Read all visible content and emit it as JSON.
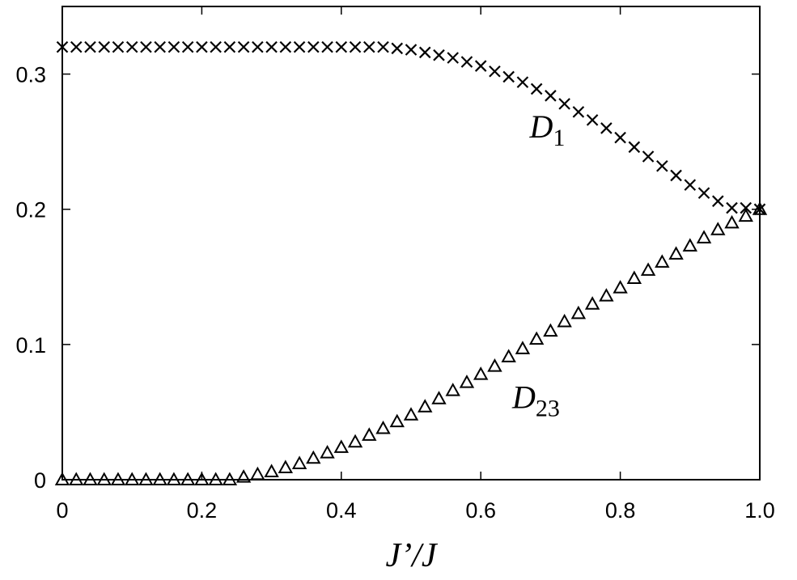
{
  "chart_data": {
    "type": "scatter",
    "xlabel": "J’/J",
    "ylabel": "",
    "xlim": [
      0,
      1.0
    ],
    "ylim": [
      0,
      0.35
    ],
    "x_ticks": [
      "0",
      "0.2",
      "0.4",
      "0.6",
      "0.8",
      "1.0"
    ],
    "y_ticks": [
      "0",
      "0.1",
      "0.2",
      "0.3"
    ],
    "grid": false,
    "series": [
      {
        "name": "D",
        "subscript": "1",
        "marker": "cross",
        "x": [
          0,
          0.02,
          0.04,
          0.06,
          0.08,
          0.1,
          0.12,
          0.14,
          0.16,
          0.18,
          0.2,
          0.22,
          0.24,
          0.26,
          0.28,
          0.3,
          0.32,
          0.34,
          0.36,
          0.38,
          0.4,
          0.42,
          0.44,
          0.46,
          0.48,
          0.5,
          0.52,
          0.54,
          0.56,
          0.58,
          0.6,
          0.62,
          0.64,
          0.66,
          0.68,
          0.7,
          0.72,
          0.74,
          0.76,
          0.78,
          0.8,
          0.82,
          0.84,
          0.86,
          0.88,
          0.9,
          0.92,
          0.94,
          0.96,
          0.98,
          1.0
        ],
        "y": [
          0.32,
          0.32,
          0.32,
          0.32,
          0.32,
          0.32,
          0.32,
          0.32,
          0.32,
          0.32,
          0.32,
          0.32,
          0.32,
          0.32,
          0.32,
          0.32,
          0.32,
          0.32,
          0.32,
          0.32,
          0.32,
          0.32,
          0.32,
          0.32,
          0.319,
          0.318,
          0.316,
          0.314,
          0.312,
          0.309,
          0.306,
          0.302,
          0.298,
          0.294,
          0.289,
          0.284,
          0.278,
          0.272,
          0.266,
          0.26,
          0.253,
          0.246,
          0.239,
          0.232,
          0.225,
          0.218,
          0.212,
          0.206,
          0.201,
          0.201,
          0.2
        ]
      },
      {
        "name": "D",
        "subscript": "23",
        "marker": "triangle",
        "x": [
          0,
          0.02,
          0.04,
          0.06,
          0.08,
          0.1,
          0.12,
          0.14,
          0.16,
          0.18,
          0.2,
          0.22,
          0.24,
          0.26,
          0.28,
          0.3,
          0.32,
          0.34,
          0.36,
          0.38,
          0.4,
          0.42,
          0.44,
          0.46,
          0.48,
          0.5,
          0.52,
          0.54,
          0.56,
          0.58,
          0.6,
          0.62,
          0.64,
          0.66,
          0.68,
          0.7,
          0.72,
          0.74,
          0.76,
          0.78,
          0.8,
          0.82,
          0.84,
          0.86,
          0.88,
          0.9,
          0.92,
          0.94,
          0.96,
          0.98,
          1.0
        ],
        "y": [
          0,
          0,
          0,
          0,
          0,
          0,
          0,
          0,
          0,
          0,
          0,
          0,
          0,
          0.002,
          0.004,
          0.006,
          0.009,
          0.012,
          0.016,
          0.02,
          0.024,
          0.028,
          0.033,
          0.038,
          0.043,
          0.048,
          0.054,
          0.06,
          0.066,
          0.072,
          0.078,
          0.084,
          0.091,
          0.097,
          0.104,
          0.11,
          0.117,
          0.123,
          0.13,
          0.136,
          0.142,
          0.149,
          0.155,
          0.161,
          0.167,
          0.173,
          0.179,
          0.185,
          0.19,
          0.195,
          0.2
        ]
      }
    ],
    "annotations": [
      {
        "series": 0,
        "text": "D",
        "subscript": "1",
        "x": 0.67,
        "y": 0.253
      },
      {
        "series": 1,
        "text": "D",
        "subscript": "23",
        "x": 0.645,
        "y": 0.053
      }
    ]
  }
}
